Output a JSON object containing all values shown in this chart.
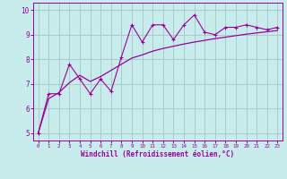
{
  "title": "",
  "xlabel": "Windchill (Refroidissement éolien,°C)",
  "ylabel": "",
  "bg_color": "#c8ecec",
  "line_color": "#990099",
  "grid_color": "#aacccc",
  "xlim": [
    -0.5,
    23.5
  ],
  "ylim": [
    4.7,
    10.3
  ],
  "xticks": [
    0,
    1,
    2,
    3,
    4,
    5,
    6,
    7,
    8,
    9,
    10,
    11,
    12,
    13,
    14,
    15,
    16,
    17,
    18,
    19,
    20,
    21,
    22,
    23
  ],
  "yticks": [
    5,
    6,
    7,
    8,
    9,
    10
  ],
  "jagged_x": [
    0,
    1,
    2,
    3,
    4,
    5,
    6,
    7,
    8,
    9,
    10,
    11,
    12,
    13,
    14,
    15,
    16,
    17,
    18,
    19,
    20,
    21,
    22,
    23
  ],
  "jagged_y": [
    5.0,
    6.6,
    6.6,
    7.8,
    7.2,
    6.6,
    7.2,
    6.7,
    8.1,
    9.4,
    8.7,
    9.4,
    9.4,
    8.8,
    9.4,
    9.8,
    9.1,
    9.0,
    9.3,
    9.3,
    9.4,
    9.3,
    9.2,
    9.3
  ],
  "smooth_x": [
    0,
    1,
    2,
    3,
    4,
    5,
    6,
    7,
    8,
    9,
    10,
    11,
    12,
    13,
    14,
    15,
    16,
    17,
    18,
    19,
    20,
    21,
    22,
    23
  ],
  "smooth_y": [
    5.0,
    6.4,
    6.65,
    7.05,
    7.35,
    7.1,
    7.3,
    7.55,
    7.8,
    8.05,
    8.18,
    8.33,
    8.44,
    8.53,
    8.62,
    8.7,
    8.77,
    8.84,
    8.9,
    8.96,
    9.02,
    9.07,
    9.12,
    9.17
  ],
  "xlabel_fontsize": 5.5,
  "ytick_fontsize": 5.5,
  "xtick_fontsize": 4.2
}
